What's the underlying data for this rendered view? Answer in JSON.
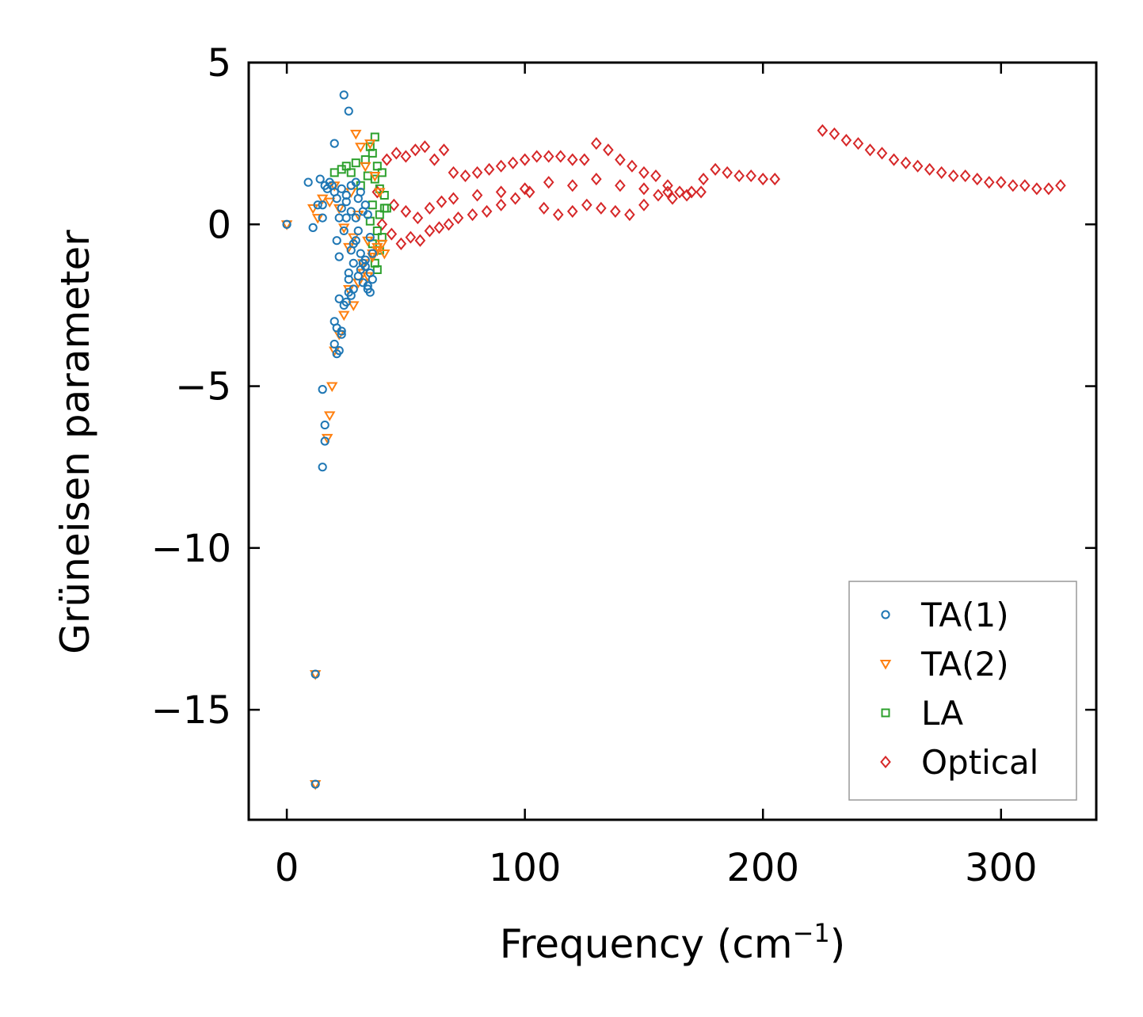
{
  "chart_data": {
    "type": "scatter",
    "title": "",
    "xlabel": "Frequency (cm",
    "xlabel_superscript": "−1",
    "xlabel_suffix": ")",
    "ylabel": "Grüneisen parameter",
    "xlim": [
      -16,
      340
    ],
    "ylim": [
      -18.4,
      5
    ],
    "xticks": [
      0,
      100,
      200,
      300
    ],
    "xtick_labels": [
      "0",
      "100",
      "200",
      "300"
    ],
    "yticks": [
      5,
      0,
      -5,
      -10,
      -15
    ],
    "ytick_labels": [
      "5",
      "0",
      "−5",
      "−10",
      "−15"
    ],
    "grid": false,
    "legend_position": "lower-right",
    "series": [
      {
        "name": "TA(1)",
        "marker": "circle",
        "color": "#1f77b4",
        "x": [
          0,
          9,
          11,
          13,
          14,
          15,
          15,
          16,
          17,
          18,
          19,
          20,
          20,
          21,
          21,
          22,
          22,
          23,
          23,
          24,
          24,
          25,
          25,
          26,
          26,
          27,
          27,
          28,
          28,
          29,
          29,
          30,
          30,
          31,
          31,
          32,
          32,
          33,
          33,
          34,
          34,
          35,
          35,
          36,
          20,
          21,
          22,
          23,
          24,
          25,
          26,
          27,
          20,
          21,
          22,
          23,
          15,
          16,
          16,
          15,
          12,
          12,
          25,
          27,
          30,
          33,
          29,
          31,
          34,
          36,
          26,
          28,
          32,
          35
        ],
        "y": [
          0,
          1.3,
          -0.1,
          0.6,
          1.4,
          0.2,
          0.6,
          1.2,
          1.1,
          1.3,
          1.2,
          2.5,
          1.0,
          -0.5,
          0.8,
          0.2,
          -1.0,
          1.1,
          0.5,
          4.0,
          -0.2,
          0.9,
          0.2,
          3.5,
          -1.5,
          1.2,
          0.4,
          -1.2,
          -0.6,
          1.3,
          0.2,
          0.8,
          -1.6,
          1.0,
          -0.9,
          0.4,
          -1.8,
          0.6,
          -1.1,
          0.3,
          -2.0,
          -0.4,
          -1.5,
          -1.7,
          -3.0,
          -3.2,
          -2.3,
          -3.4,
          -2.5,
          -2.4,
          -2.1,
          -2.2,
          -3.7,
          -4.0,
          -3.9,
          -3.3,
          -5.1,
          -6.2,
          -6.7,
          -7.5,
          -13.9,
          -17.3,
          0.7,
          -0.8,
          -0.2,
          -1.3,
          -0.5,
          -1.4,
          -1.9,
          -0.9,
          -1.7,
          -2.0,
          -1.2,
          -2.1
        ]
      },
      {
        "name": "TA(2)",
        "marker": "triangle-down",
        "color": "#ff7f0e",
        "x": [
          0,
          11,
          13,
          15,
          18,
          20,
          22,
          24,
          26,
          27,
          28,
          29,
          30,
          31,
          32,
          33,
          34,
          35,
          36,
          37,
          38,
          39,
          40,
          41,
          30,
          32,
          34,
          36,
          38,
          26,
          28,
          24,
          22,
          20,
          19,
          18,
          17,
          12,
          12
        ],
        "y": [
          0,
          0.5,
          0.2,
          0.8,
          0.7,
          1.2,
          0.5,
          -0.1,
          -0.7,
          1.0,
          -0.4,
          2.8,
          0.3,
          2.4,
          -1.5,
          1.8,
          -0.5,
          2.5,
          -1.0,
          1.5,
          -0.8,
          1.0,
          -0.6,
          -0.9,
          -1.8,
          -1.2,
          -1.6,
          -0.9,
          -0.7,
          -2.0,
          -2.5,
          -2.8,
          -3.4,
          -3.9,
          -5.0,
          -5.9,
          -6.6,
          -13.9,
          -17.3
        ]
      },
      {
        "name": "LA",
        "marker": "square",
        "color": "#2ca02c",
        "x": [
          20,
          23,
          25,
          27,
          29,
          31,
          33,
          34,
          35,
          36,
          36,
          37,
          37,
          38,
          38,
          39,
          39,
          40,
          40,
          41,
          41,
          42,
          38,
          39,
          37,
          36,
          35
        ],
        "y": [
          1.6,
          1.7,
          1.8,
          1.6,
          1.9,
          1.2,
          2.0,
          1.5,
          2.4,
          2.2,
          0.6,
          2.7,
          1.4,
          1.8,
          -0.2,
          1.1,
          0.3,
          1.6,
          -0.4,
          0.9,
          0.5,
          0.5,
          -1.4,
          -0.8,
          -1.2,
          -0.6,
          0.1
        ]
      },
      {
        "name": "Optical",
        "marker": "diamond",
        "color": "#d62728",
        "x": [
          38,
          42,
          46,
          50,
          54,
          58,
          62,
          66,
          70,
          75,
          80,
          85,
          90,
          95,
          100,
          105,
          110,
          115,
          120,
          125,
          130,
          135,
          140,
          145,
          150,
          155,
          160,
          165,
          170,
          175,
          180,
          185,
          190,
          195,
          200,
          205,
          40,
          44,
          48,
          52,
          56,
          60,
          64,
          68,
          72,
          78,
          84,
          90,
          96,
          102,
          108,
          114,
          120,
          126,
          132,
          138,
          144,
          150,
          156,
          162,
          168,
          174,
          45,
          50,
          55,
          60,
          65,
          70,
          80,
          90,
          100,
          110,
          120,
          130,
          140,
          150,
          160,
          225,
          230,
          235,
          240,
          245,
          250,
          255,
          260,
          265,
          270,
          275,
          280,
          285,
          290,
          295,
          300,
          305,
          310,
          315,
          320,
          325
        ],
        "y": [
          1.0,
          2.0,
          2.2,
          2.1,
          2.3,
          2.4,
          2.0,
          2.3,
          1.6,
          1.5,
          1.6,
          1.7,
          1.8,
          1.9,
          2.0,
          2.1,
          2.1,
          2.1,
          2.0,
          2.0,
          2.5,
          2.3,
          2.0,
          1.8,
          1.6,
          1.5,
          1.2,
          1.0,
          1.0,
          1.4,
          1.7,
          1.6,
          1.5,
          1.5,
          1.4,
          1.4,
          0.0,
          -0.3,
          -0.6,
          -0.4,
          -0.5,
          -0.2,
          -0.1,
          0.0,
          0.2,
          0.3,
          0.4,
          0.6,
          0.8,
          1.0,
          0.5,
          0.3,
          0.4,
          0.6,
          0.5,
          0.4,
          0.3,
          0.6,
          0.9,
          0.8,
          0.9,
          1.0,
          0.6,
          0.4,
          0.2,
          0.5,
          0.7,
          0.8,
          0.9,
          1.0,
          1.1,
          1.3,
          1.2,
          1.4,
          1.2,
          1.1,
          1.0,
          2.9,
          2.8,
          2.6,
          2.5,
          2.3,
          2.2,
          2.0,
          1.9,
          1.8,
          1.7,
          1.6,
          1.5,
          1.5,
          1.4,
          1.3,
          1.3,
          1.2,
          1.2,
          1.1,
          1.1,
          1.2
        ]
      }
    ]
  }
}
